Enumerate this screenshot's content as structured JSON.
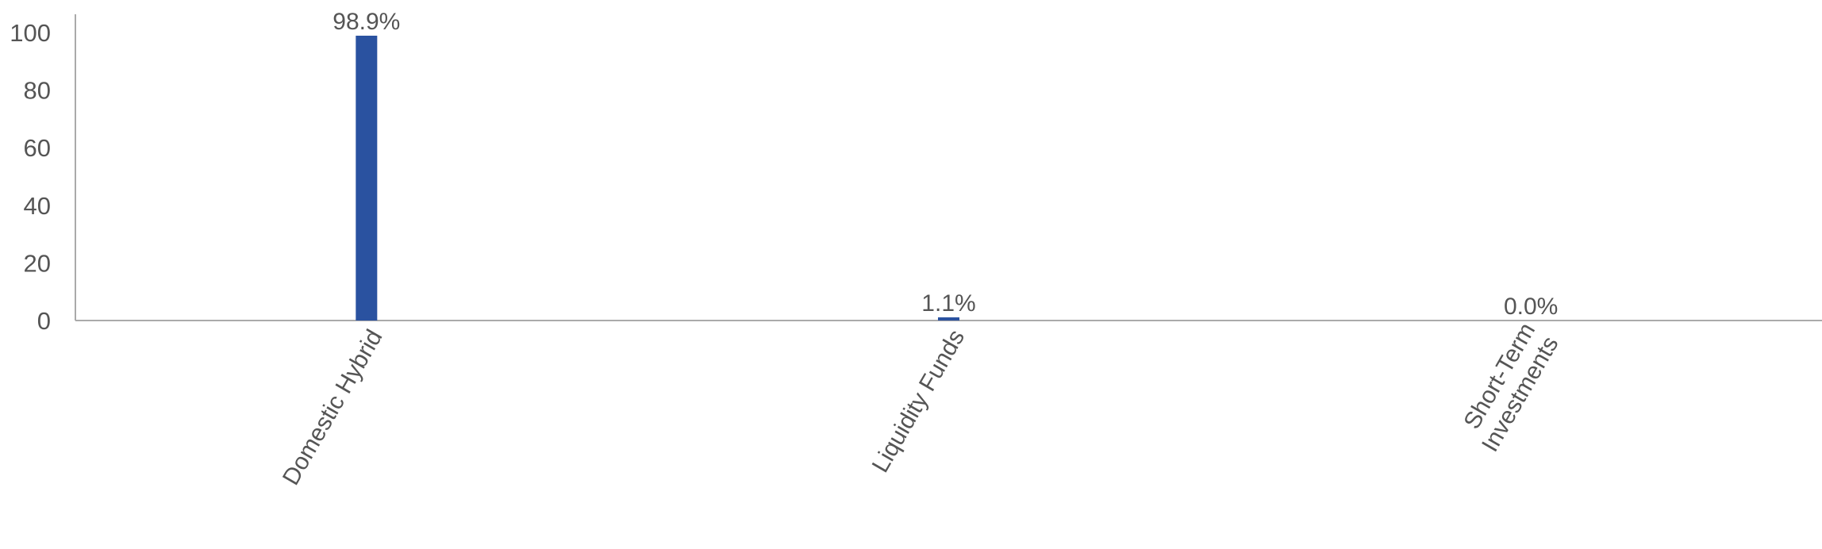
{
  "chart_data": {
    "type": "bar",
    "title": "",
    "xlabel": "",
    "ylabel": "",
    "categories": [
      "Domestic Hybrid",
      "Liquidity Funds",
      "Short-Term Investments"
    ],
    "category_label_lines": [
      [
        "Domestic Hybrid"
      ],
      [
        "Liquidity Funds"
      ],
      [
        "Short-Term",
        "Investments"
      ]
    ],
    "values": [
      98.9,
      1.1,
      0.0
    ],
    "data_labels": [
      "98.9%",
      "1.1%",
      "0.0%"
    ],
    "ylim": [
      0,
      100
    ],
    "yticks": [
      0,
      20,
      40,
      60,
      80,
      100
    ],
    "ytick_labels": [
      "0",
      "20",
      "40",
      "60",
      "80",
      "100"
    ],
    "grid": false,
    "legend": "none",
    "bar_color": "#2a52a0",
    "axis_color": "#aaaaaa",
    "text_color": "#555555"
  }
}
